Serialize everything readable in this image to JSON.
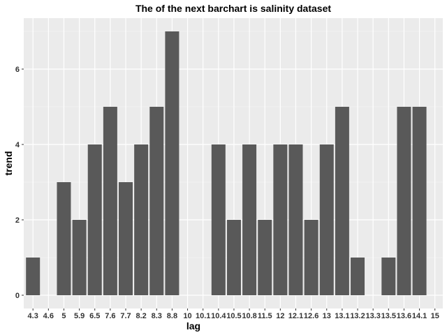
{
  "chart_data": {
    "type": "bar",
    "title": "The of the next barchart is salinity dataset",
    "xlabel": "lag",
    "ylabel": "trend",
    "categories": [
      "4.3",
      "4.6",
      "5",
      "5.9",
      "6.5",
      "7.6",
      "7.7",
      "8.2",
      "8.3",
      "8.8",
      "10",
      "10.1",
      "10.4",
      "10.5",
      "10.8",
      "11.5",
      "12",
      "12.1",
      "12.6",
      "13",
      "13.1",
      "13.2",
      "13.3",
      "13.5",
      "13.6",
      "14.1",
      "15"
    ],
    "values": [
      1,
      0,
      3,
      2,
      4,
      5,
      3,
      4,
      5,
      7,
      0,
      0,
      4,
      2,
      4,
      2,
      4,
      4,
      2,
      4,
      5,
      1,
      0,
      1,
      5,
      5,
      0
    ],
    "ylim": [
      0,
      7.3
    ],
    "yticks": [
      0,
      2,
      4,
      6
    ],
    "grid": true,
    "legend": "none",
    "colors": {
      "bar": "#595959",
      "panel": "#ebebeb",
      "grid_major": "#ffffff"
    }
  }
}
